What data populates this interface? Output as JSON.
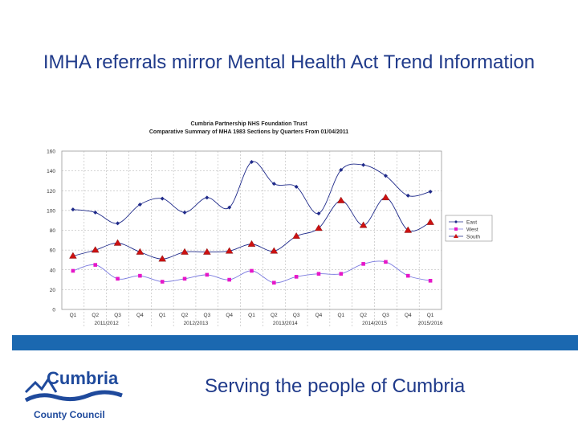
{
  "slide": {
    "title": "IMHA referrals mirror Mental Health Act Trend Information",
    "tagline": "Serving the people of Cumbria",
    "logo_text_main": "Cumbria",
    "logo_text_sub": "County Council"
  },
  "chart_data": {
    "type": "line",
    "title": "Cumbria Partnership NHS Foundation Trust",
    "subtitle": "Comparative Summary of MHA 1983 Sections by Quarters From 01/04/2011",
    "categories": [
      "Q1",
      "Q2",
      "Q3",
      "Q4",
      "Q1",
      "Q2",
      "Q3",
      "Q4",
      "Q1",
      "Q2",
      "Q3",
      "Q4",
      "Q1",
      "Q2",
      "Q3",
      "Q4",
      "Q1"
    ],
    "year_groups": [
      {
        "label": "2011/2012",
        "start": 0,
        "end": 3
      },
      {
        "label": "2012/2013",
        "start": 4,
        "end": 7
      },
      {
        "label": "2013/2014",
        "start": 8,
        "end": 11
      },
      {
        "label": "2014/2015",
        "start": 12,
        "end": 15
      },
      {
        "label": "2015/2016",
        "start": 16,
        "end": 16
      }
    ],
    "yticks": [
      0,
      20,
      40,
      60,
      80,
      100,
      120,
      140,
      160
    ],
    "ylim": [
      0,
      160
    ],
    "series": [
      {
        "name": "East",
        "color": "#1f2a8a",
        "marker": "diamond",
        "values": [
          101,
          98,
          87,
          106,
          112,
          98,
          113,
          103,
          149,
          127,
          124,
          97,
          141,
          146,
          135,
          115,
          119
        ]
      },
      {
        "name": "West",
        "color": "#e617c8",
        "marker": "square",
        "values": [
          39,
          45,
          31,
          34,
          28,
          31,
          35,
          30,
          39,
          27,
          33,
          36,
          36,
          46,
          48,
          34,
          29
        ]
      },
      {
        "name": "South",
        "color": "#1f2a8a",
        "marker": "triangle",
        "marker_color": "#cc1111",
        "values": [
          54,
          60,
          67,
          58,
          51,
          58,
          58,
          59,
          66,
          59,
          74,
          82,
          110,
          85,
          113,
          80,
          88
        ]
      }
    ],
    "legend": "right"
  }
}
